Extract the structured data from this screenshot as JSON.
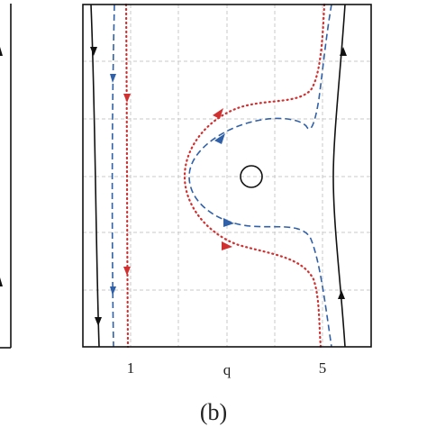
{
  "panel_label": "(b)",
  "x_axis": {
    "label": "q",
    "ticks": [
      "1",
      "5"
    ]
  }
}
